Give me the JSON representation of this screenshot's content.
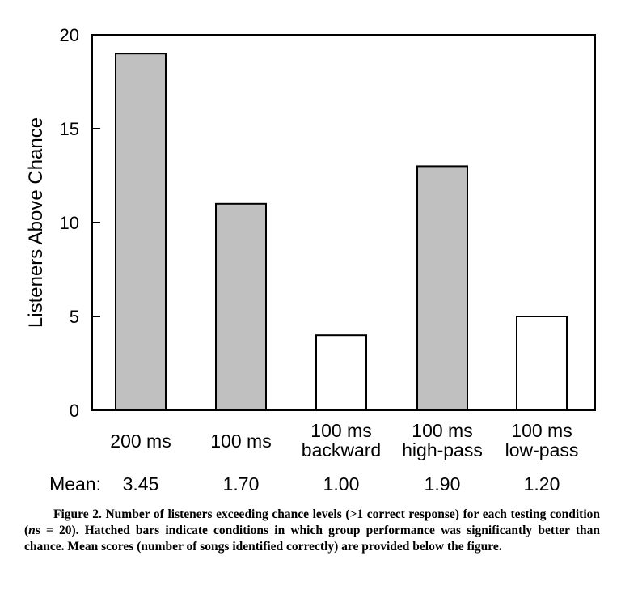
{
  "chart_data": {
    "type": "bar",
    "ylabel": "Listeners Above Chance",
    "ylim": [
      0,
      20
    ],
    "yticks": [
      "0",
      "5",
      "10",
      "15",
      "20"
    ],
    "categories": [
      {
        "line1": "200 ms",
        "line2": ""
      },
      {
        "line1": "100 ms",
        "line2": ""
      },
      {
        "line1": "100 ms",
        "line2": "backward"
      },
      {
        "line1": "100 ms",
        "line2": "high-pass"
      },
      {
        "line1": "100 ms",
        "line2": "low-pass"
      }
    ],
    "values": [
      19,
      11,
      4,
      13,
      5
    ],
    "significant": [
      true,
      true,
      false,
      true,
      false
    ],
    "colors": {
      "significant": "#c0c0c0",
      "not_significant": "#ffffff",
      "stroke": "#000000"
    },
    "grid": false,
    "mean_row": {
      "label": "Mean:",
      "values": [
        "3.45",
        "1.70",
        "1.00",
        "1.90",
        "1.20"
      ]
    }
  },
  "caption": {
    "prefix": "Figure 2. Number of listeners exceeding chance levels (>1 correct response) for each testing condition (",
    "n_symbol": "n",
    "n_suffix": "s = 20). Hatched bars indicate conditions in which group performance was significantly better than chance. Mean scores (number of songs identified correctly) are provided below the figure."
  }
}
